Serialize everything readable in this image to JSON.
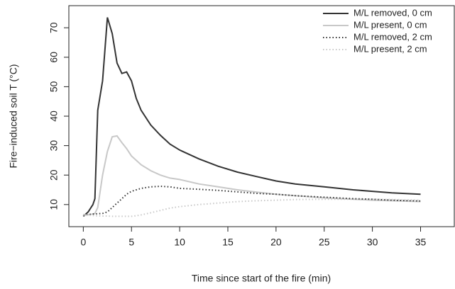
{
  "chart_data": {
    "type": "line",
    "xlabel": "Time since start of the fire (min)",
    "ylabel": "Fire−induced soil T (°C)",
    "x": [
      0,
      0.5,
      1,
      1.2,
      1.5,
      2,
      2.5,
      3,
      3.5,
      4,
      4.5,
      5,
      5.5,
      6,
      7,
      8,
      9,
      10,
      12,
      14,
      16,
      18,
      20,
      22,
      25,
      28,
      30,
      32,
      35
    ],
    "series": [
      {
        "name": "M/L removed, 0 cm",
        "color": "#333333",
        "linestyle": "solid",
        "values": [
          6,
          7.5,
          10,
          12,
          42,
          52,
          73.5,
          68,
          58,
          54.5,
          55,
          52,
          46,
          42,
          37,
          33.5,
          30.5,
          28.5,
          25.5,
          23,
          21,
          19.5,
          18,
          17,
          16,
          15,
          14.5,
          14,
          13.5
        ]
      },
      {
        "name": "M/L present, 0 cm",
        "color": "#c8c8c8",
        "linestyle": "solid",
        "values": [
          6.5,
          6.5,
          6.8,
          7,
          9,
          20,
          28,
          33,
          33.3,
          31,
          29,
          26.5,
          25,
          23.5,
          21.5,
          20,
          19,
          18.5,
          17,
          16,
          15,
          14.2,
          13.5,
          13,
          12.3,
          11.8,
          11.5,
          11.3,
          11
        ]
      },
      {
        "name": "M/L removed, 2 cm",
        "color": "#333333",
        "linestyle": "dotted",
        "values": [
          6.5,
          6.6,
          6.8,
          6.8,
          6.9,
          7,
          7.5,
          9,
          10.5,
          12,
          13.5,
          14.5,
          15,
          15.5,
          16,
          16.2,
          16,
          15.5,
          15.2,
          14.8,
          14.3,
          13.8,
          13.5,
          13,
          12.5,
          12,
          11.8,
          11.5,
          11.2
        ]
      },
      {
        "name": "M/L present, 2 cm",
        "color": "#c8c8c8",
        "linestyle": "dotted",
        "values": [
          6.5,
          6.4,
          6.3,
          6.2,
          6.2,
          6.1,
          6.1,
          6,
          6,
          6,
          6,
          6,
          6.2,
          6.5,
          7.2,
          8,
          8.8,
          9.3,
          10,
          10.5,
          11,
          11.3,
          11.5,
          11.7,
          11.8,
          11.8,
          11.8,
          11.7,
          11.5
        ]
      }
    ],
    "xlim": [
      -1.5,
      38.5
    ],
    "ylim": [
      2.5,
      77.5
    ],
    "xticks": [
      0,
      5,
      10,
      15,
      20,
      25,
      30,
      35
    ],
    "yticks": [
      10,
      20,
      30,
      40,
      50,
      60,
      70
    ],
    "legend": "top-right"
  }
}
